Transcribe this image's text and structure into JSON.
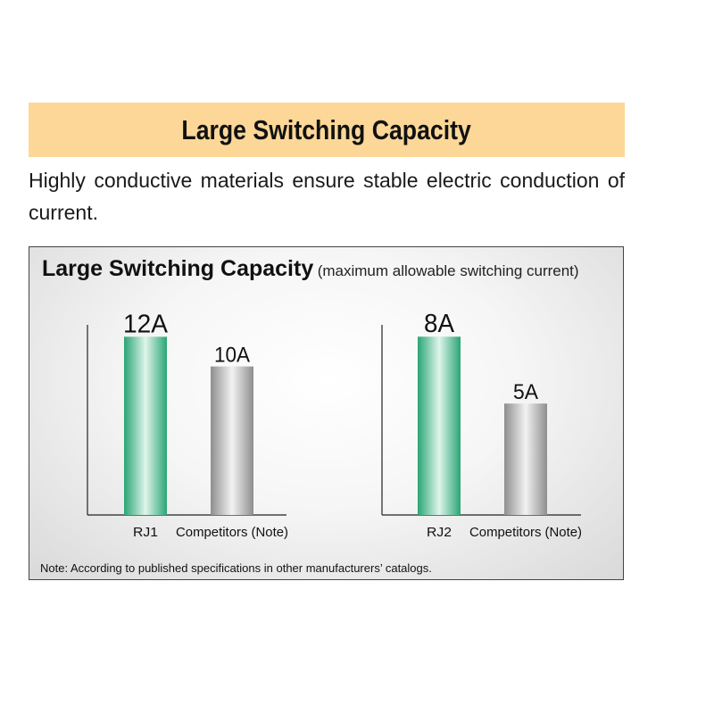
{
  "banner": {
    "title": "Large Switching Capacity"
  },
  "description": "Highly conductive materials ensure stable electric conduction of current.",
  "panel": {
    "title": "Large Switching Capacity",
    "subtitle": "(maximum allowable switching current)",
    "note": "Note: According to published specifications in other manufacturers’ catalogs."
  },
  "colors": {
    "banner": "#fcd797",
    "green_bar": "#3dbb88",
    "gray_bar": "#a8a8a8"
  },
  "chart_data": [
    {
      "type": "bar",
      "categories": [
        "RJ1",
        "Competitors (Note)"
      ],
      "values": [
        12,
        10
      ],
      "data_labels": [
        "12A",
        "10A"
      ],
      "ylim": [
        0,
        12.8
      ],
      "grid": false
    },
    {
      "type": "bar",
      "categories": [
        "RJ2",
        "Competitors (Note)"
      ],
      "values": [
        8,
        5
      ],
      "data_labels": [
        "8A",
        "5A"
      ],
      "ylim": [
        0,
        8.53
      ],
      "grid": false
    }
  ]
}
